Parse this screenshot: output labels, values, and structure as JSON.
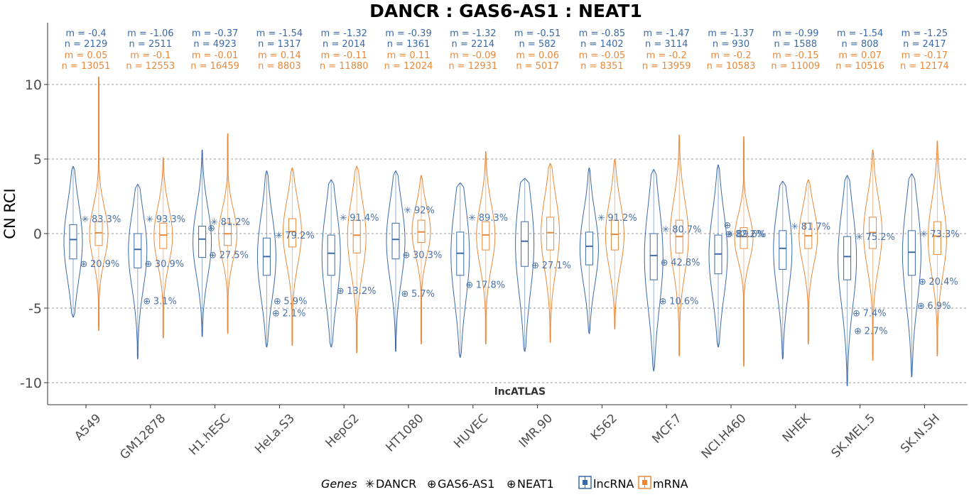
{
  "chart_data": {
    "type": "violin",
    "title": "DANCR : GAS6-AS1 : NEAT1",
    "ylabel": "CN RCI",
    "ylim": [
      -11,
      14
    ],
    "yticks": [
      -10,
      -5,
      0,
      5,
      10
    ],
    "footer": "lncATLAS",
    "categories": [
      "A549",
      "GM12878",
      "H1.hESC",
      "HeLa.S3",
      "HepG2",
      "HT1080",
      "HUVEC",
      "IMR.90",
      "K562",
      "MCF.7",
      "NCI.H460",
      "NHEK",
      "SK.MEL.5",
      "SK.N.SH"
    ],
    "stats_labels": {
      "lncRNA_m": [
        "m = -0.4",
        "m = -1.06",
        "m = -0.37",
        "m = -1.54",
        "m = -1.32",
        "m = -0.39",
        "m = -1.32",
        "m = -0.51",
        "m = -0.85",
        "m = -1.47",
        "m = -1.37",
        "m = -0.99",
        "m = -1.54",
        "m = -1.25"
      ],
      "lncRNA_n": [
        "n = 2129",
        "n = 2511",
        "n = 4923",
        "n = 1317",
        "n = 2014",
        "n = 1361",
        "n = 2214",
        "n = 582",
        "n = 1402",
        "n = 3114",
        "n = 930",
        "n = 1588",
        "n = 808",
        "n = 2417"
      ],
      "mRNA_m": [
        "m = 0.05",
        "m = -0.1",
        "m = -0.01",
        "m = 0.14",
        "m = -0.11",
        "m = 0.11",
        "m = -0.09",
        "m = 0.06",
        "m = -0.05",
        "m = -0.2",
        "m = -0.2",
        "m = -0.15",
        "m = 0.07",
        "m = -0.17"
      ],
      "mRNA_n": [
        "n = 13051",
        "n = 12553",
        "n = 16459",
        "n = 8803",
        "n = 11880",
        "n = 12024",
        "n = 12931",
        "n = 5017",
        "n = 8351",
        "n = 13959",
        "n = 10583",
        "n = 11009",
        "n = 10516",
        "n = 12174"
      ]
    },
    "series": [
      {
        "name": "lncRNA",
        "color": "#3b6aa8",
        "range": [
          [
            -5.6,
            4.5
          ],
          [
            -8.4,
            3.3
          ],
          [
            -6.9,
            5.6
          ],
          [
            -7.6,
            4.2
          ],
          [
            -7.6,
            3.6
          ],
          [
            -7.9,
            4.2
          ],
          [
            -8.3,
            3.4
          ],
          [
            -7.9,
            3.7
          ],
          [
            -6.7,
            4.4
          ],
          [
            -9.2,
            4.3
          ],
          [
            -7.6,
            4.6
          ],
          [
            -8.4,
            3.5
          ],
          [
            -10.2,
            3.9
          ],
          [
            -9.6,
            4.0
          ]
        ],
        "quartiles": [
          [
            -1.7,
            0.6
          ],
          [
            -2.3,
            0.0
          ],
          [
            -1.6,
            0.5
          ],
          [
            -2.8,
            -0.3
          ],
          [
            -2.8,
            -0.1
          ],
          [
            -1.7,
            0.7
          ],
          [
            -2.8,
            0.1
          ],
          [
            -2.2,
            0.8
          ],
          [
            -2.1,
            0.1
          ],
          [
            -3.1,
            0.0
          ],
          [
            -2.7,
            -0.1
          ],
          [
            -2.4,
            0.2
          ],
          [
            -3.1,
            -0.2
          ],
          [
            -2.8,
            0.2
          ]
        ],
        "medians": [
          -0.4,
          -1.06,
          -0.37,
          -1.54,
          -1.32,
          -0.39,
          -1.32,
          -0.51,
          -0.85,
          -1.47,
          -1.37,
          -0.99,
          -1.54,
          -1.25
        ]
      },
      {
        "name": "mRNA",
        "color": "#e8883a",
        "range": [
          [
            -6.5,
            10.5
          ],
          [
            -7.0,
            5.1
          ],
          [
            -6.7,
            6.7
          ],
          [
            -7.5,
            4.4
          ],
          [
            -8.0,
            4.5
          ],
          [
            -7.4,
            3.9
          ],
          [
            -7.4,
            5.5
          ],
          [
            -7.3,
            4.7
          ],
          [
            -6.4,
            5.0
          ],
          [
            -8.2,
            6.6
          ],
          [
            -8.9,
            6.5
          ],
          [
            -7.4,
            3.6
          ],
          [
            -8.5,
            5.6
          ],
          [
            -8.2,
            6.2
          ]
        ],
        "quartiles": [
          [
            -0.8,
            0.8
          ],
          [
            -1.0,
            0.7
          ],
          [
            -0.8,
            0.7
          ],
          [
            -0.9,
            1.0
          ],
          [
            -1.3,
            0.9
          ],
          [
            -0.6,
            0.9
          ],
          [
            -1.1,
            0.8
          ],
          [
            -1.1,
            1.1
          ],
          [
            -1.1,
            0.9
          ],
          [
            -1.3,
            0.9
          ],
          [
            -1.0,
            0.4
          ],
          [
            -1.0,
            0.7
          ],
          [
            -1.0,
            1.1
          ],
          [
            -1.4,
            0.8
          ]
        ],
        "medians": [
          0.05,
          -0.1,
          -0.01,
          0.14,
          -0.11,
          0.11,
          -0.09,
          0.06,
          -0.05,
          -0.2,
          -0.2,
          -0.15,
          0.07,
          -0.17
        ]
      }
    ],
    "genes": [
      {
        "name": "DANCR",
        "symbol": "✳",
        "values": [
          1.0,
          1.0,
          0.8,
          -0.1,
          1.1,
          1.6,
          1.1,
          null,
          1.1,
          0.3,
          0.0,
          0.5,
          -0.2,
          0.0
        ],
        "labels": [
          "83.3%",
          "93.3%",
          "81.2%",
          "79.2%",
          "91.4%",
          "92%",
          "89.3%",
          "",
          "91.2%",
          "80.7%",
          "89.6%",
          "81.7%",
          "75.2%",
          "73.3%"
        ]
      },
      {
        "name": "GAS6-AS1",
        "symbol": "⊕",
        "values": [
          -2.0,
          -2.0,
          -1.4,
          -4.5,
          null,
          -1.4,
          null,
          -2.1,
          null,
          -1.9,
          0.0,
          null,
          -6.5,
          -3.2
        ],
        "labels": [
          "20.9%",
          "30.9%",
          "27.5%",
          "5.9%",
          "",
          "30.3%",
          "",
          "27.1%",
          "",
          "42.8%",
          "82.2%",
          "",
          "2.7%",
          "20.4%"
        ]
      },
      {
        "name": "NEAT1",
        "symbol": "⊕",
        "values": [
          null,
          -4.5,
          0.4,
          -5.3,
          -3.8,
          -4.0,
          -3.4,
          null,
          null,
          -4.5,
          0.6,
          null,
          -5.3,
          -4.8
        ],
        "labels": [
          "",
          "3.1%",
          "",
          "2.1%",
          "13.2%",
          "5.7%",
          "17.8%",
          "",
          "",
          "10.6%",
          "",
          "",
          "7.4%",
          "6.9%"
        ]
      }
    ],
    "legend": {
      "title": "Genes",
      "gene_items": [
        {
          "symbol": "✳",
          "label": "DANCR"
        },
        {
          "symbol": "⊕",
          "label": "GAS6-AS1"
        },
        {
          "symbol": "⊕",
          "label": "NEAT1"
        }
      ],
      "type_items": [
        {
          "label": "lncRNA",
          "color": "#3b6aa8"
        },
        {
          "label": "mRNA",
          "color": "#e8883a"
        }
      ],
      "position": "bottom"
    },
    "grid": true
  }
}
